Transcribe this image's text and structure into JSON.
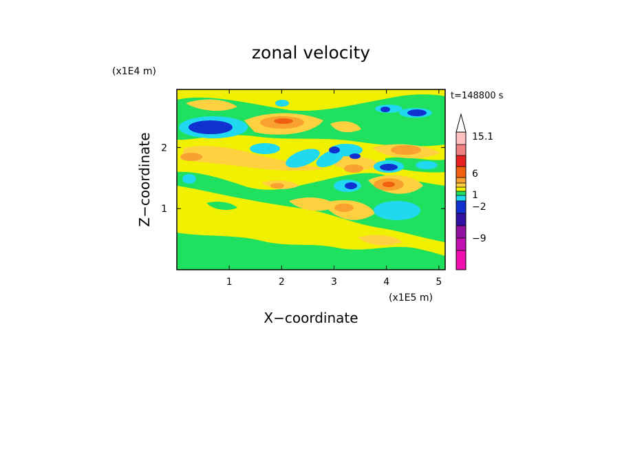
{
  "chart_data": {
    "type": "heatmap",
    "title": "zonal velocity",
    "xlabel": "X−coordinate",
    "ylabel": "Z−coordinate",
    "x_multiplier": "(x1E5 m)",
    "y_multiplier": "(x1E4 m)",
    "time_label": "t=148800 s",
    "xlim": [
      0,
      5.12
    ],
    "ylim": [
      0,
      2.95
    ],
    "x_ticks": [
      1,
      2,
      3,
      4,
      5
    ],
    "y_ticks": [
      1,
      2
    ],
    "x_tick_labels": [
      "1",
      "2",
      "3",
      "4",
      "5"
    ],
    "y_tick_labels": [
      "1",
      "2"
    ],
    "colorbar": {
      "labeled_values": [
        "15.1",
        "6",
        "1",
        "−2",
        "−9"
      ],
      "bands_top_to_bottom": [
        "#ffc0c0",
        "#f08080",
        "#e82020",
        "#f06010",
        "#f8a030",
        "#ffd040",
        "#f0f000",
        "#20e060",
        "#20d8f0",
        "#1030d0",
        "#3010a0",
        "#9010a0",
        "#c010b0",
        "#f010b0"
      ],
      "extend_top_color": "#ffffff"
    },
    "field_colors": {
      "background": "#f0f000",
      "weak_negative": "#20e060",
      "moderate_negative": "#20d8f0",
      "strong_negative": "#1030d0",
      "weak_positive": "#ffd040",
      "moderate_positive": "#f8a030",
      "strong_positive": "#f06010"
    },
    "features": [
      {
        "x": 0.85,
        "z": 2.4,
        "level": -9
      },
      {
        "x": 0.55,
        "z": 1.4,
        "level": -1
      },
      {
        "x": 1.2,
        "z": 1.45,
        "level": -1
      },
      {
        "x": 1.45,
        "z": 2.05,
        "level": -2
      },
      {
        "x": 1.9,
        "z": 1.95,
        "level": -2
      },
      {
        "x": 2.7,
        "z": 2.2,
        "level": -2
      },
      {
        "x": 2.55,
        "z": 1.9,
        "level": -2
      },
      {
        "x": 3.0,
        "z": 2.2,
        "level": -6
      },
      {
        "x": 3.4,
        "z": 2.05,
        "level": -6
      },
      {
        "x": 3.35,
        "z": 1.4,
        "level": -6
      },
      {
        "x": 4.0,
        "z": 1.7,
        "level": -6
      },
      {
        "x": 3.95,
        "z": 2.7,
        "level": -6
      },
      {
        "x": 4.6,
        "z": 2.6,
        "level": -6
      },
      {
        "x": 4.45,
        "z": 0.95,
        "level": -2
      },
      {
        "x": 3.85,
        "z": 2.0,
        "level": -2
      },
      {
        "x": 4.6,
        "z": 1.75,
        "level": -2
      },
      {
        "x": 2.05,
        "z": 2.5,
        "level": 3
      },
      {
        "x": 0.5,
        "z": 2.7,
        "level": 1
      },
      {
        "x": 0.3,
        "z": 1.8,
        "level": 1
      },
      {
        "x": 3.05,
        "z": 1.7,
        "level": 3
      },
      {
        "x": 3.4,
        "z": 1.65,
        "level": 3
      },
      {
        "x": 3.85,
        "z": 1.38,
        "level": 6
      },
      {
        "x": 4.45,
        "z": 1.95,
        "level": 3
      },
      {
        "x": 4.95,
        "z": 2.3,
        "level": 1
      },
      {
        "x": 3.6,
        "z": 0.95,
        "level": 1
      },
      {
        "x": 2.95,
        "z": 1.05,
        "level": 1
      },
      {
        "x": 2.2,
        "z": 1.35,
        "level": 3
      },
      {
        "x": 4.05,
        "z": 0.4,
        "level": 1
      }
    ]
  }
}
